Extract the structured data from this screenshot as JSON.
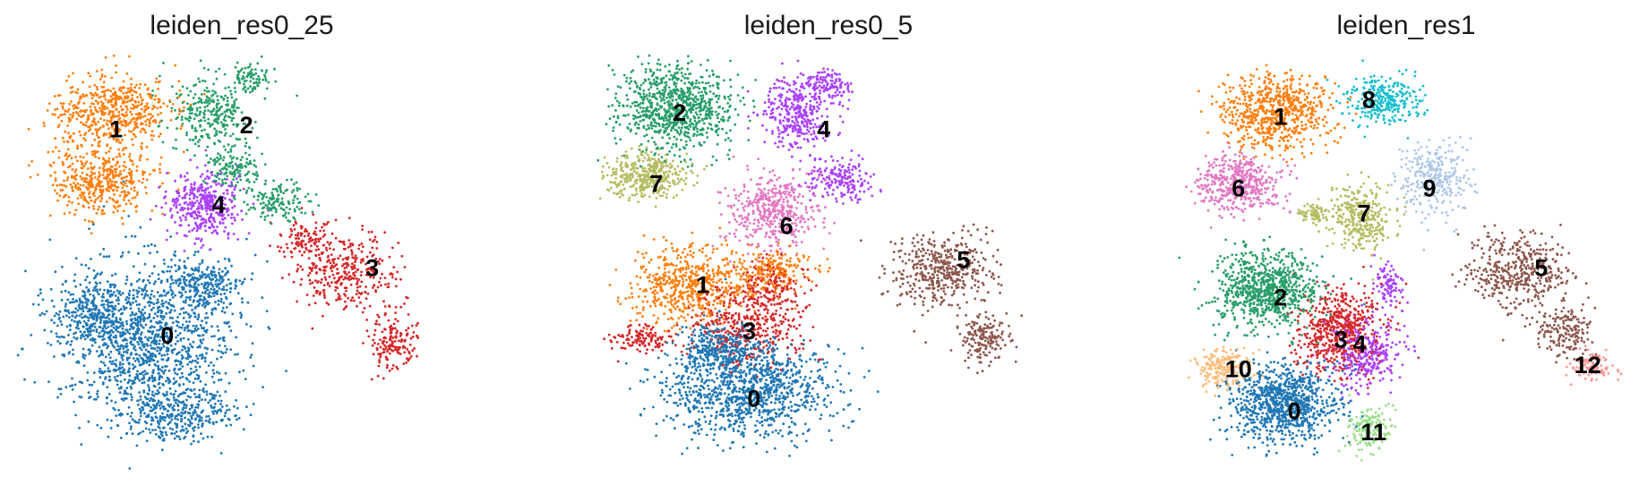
{
  "chart_data": [
    {
      "type": "scatter",
      "title": "leiden_res0_25",
      "clusters": [
        {
          "label": "0",
          "color": "#1f77b4",
          "n": 2100,
          "blobs": [
            [
              0.3,
              0.68,
              0.17,
              0.17,
              1.0
            ],
            [
              0.18,
              0.62,
              0.08,
              0.07,
              0.25
            ],
            [
              0.42,
              0.55,
              0.07,
              0.06,
              0.2
            ],
            [
              0.36,
              0.86,
              0.11,
              0.06,
              0.25
            ]
          ]
        },
        {
          "label": "1",
          "color": "#ff7f0e",
          "n": 1000,
          "blobs": [
            [
              0.22,
              0.14,
              0.11,
              0.08,
              1.0
            ],
            [
              0.2,
              0.3,
              0.1,
              0.07,
              0.8
            ]
          ]
        },
        {
          "label": "2",
          "color": "#279e68",
          "n": 650,
          "blobs": [
            [
              0.43,
              0.14,
              0.08,
              0.08,
              1.0
            ],
            [
              0.48,
              0.27,
              0.05,
              0.05,
              0.5
            ],
            [
              0.58,
              0.35,
              0.06,
              0.04,
              0.5
            ],
            [
              0.52,
              0.06,
              0.04,
              0.03,
              0.3
            ]
          ]
        },
        {
          "label": "3",
          "color": "#d62728",
          "n": 600,
          "blobs": [
            [
              0.72,
              0.52,
              0.1,
              0.08,
              1.0
            ],
            [
              0.82,
              0.68,
              0.05,
              0.06,
              0.5
            ],
            [
              0.64,
              0.44,
              0.06,
              0.04,
              0.3
            ]
          ]
        },
        {
          "label": "4",
          "color": "#aa40fc",
          "n": 380,
          "blobs": [
            [
              0.42,
              0.36,
              0.07,
              0.07,
              1.0
            ]
          ]
        }
      ],
      "labels": [
        {
          "text": "0",
          "x": 0.34,
          "y": 0.67
        },
        {
          "text": "1",
          "x": 0.23,
          "y": 0.18
        },
        {
          "text": "2",
          "x": 0.51,
          "y": 0.17
        },
        {
          "text": "3",
          "x": 0.78,
          "y": 0.51
        },
        {
          "text": "4",
          "x": 0.45,
          "y": 0.36
        }
      ]
    },
    {
      "type": "scatter",
      "title": "leiden_res0_5",
      "clusters": [
        {
          "label": "0",
          "color": "#1f77b4",
          "n": 1400,
          "blobs": [
            [
              0.33,
              0.8,
              0.16,
              0.1,
              1.0
            ],
            [
              0.27,
              0.7,
              0.08,
              0.06,
              0.3
            ]
          ]
        },
        {
          "label": "1",
          "color": "#ff7f0e",
          "n": 800,
          "blobs": [
            [
              0.2,
              0.55,
              0.11,
              0.08,
              1.0
            ],
            [
              0.38,
              0.52,
              0.08,
              0.05,
              0.4
            ]
          ]
        },
        {
          "label": "2",
          "color": "#279e68",
          "n": 850,
          "blobs": [
            [
              0.17,
              0.13,
              0.11,
              0.09,
              1.0
            ]
          ]
        },
        {
          "label": "3",
          "color": "#d62728",
          "n": 650,
          "blobs": [
            [
              0.33,
              0.64,
              0.11,
              0.08,
              1.0
            ],
            [
              0.1,
              0.68,
              0.07,
              0.03,
              0.3
            ],
            [
              0.38,
              0.55,
              0.05,
              0.05,
              0.3
            ]
          ]
        },
        {
          "label": "4",
          "color": "#aa40fc",
          "n": 650,
          "blobs": [
            [
              0.43,
              0.14,
              0.07,
              0.08,
              1.0
            ],
            [
              0.53,
              0.3,
              0.06,
              0.05,
              0.5
            ],
            [
              0.5,
              0.07,
              0.04,
              0.03,
              0.3
            ]
          ]
        },
        {
          "label": "5",
          "color": "#8c564b",
          "n": 600,
          "blobs": [
            [
              0.74,
              0.52,
              0.1,
              0.08,
              1.0
            ],
            [
              0.84,
              0.68,
              0.05,
              0.05,
              0.4
            ]
          ]
        },
        {
          "label": "6",
          "color": "#e377c2",
          "n": 450,
          "blobs": [
            [
              0.38,
              0.37,
              0.08,
              0.08,
              1.0
            ]
          ]
        },
        {
          "label": "7",
          "color": "#b5bd61",
          "n": 400,
          "blobs": [
            [
              0.11,
              0.29,
              0.08,
              0.05,
              1.0
            ]
          ]
        }
      ],
      "labels": [
        {
          "text": "0",
          "x": 0.34,
          "y": 0.82
        },
        {
          "text": "1",
          "x": 0.23,
          "y": 0.55
        },
        {
          "text": "2",
          "x": 0.18,
          "y": 0.14
        },
        {
          "text": "3",
          "x": 0.33,
          "y": 0.66
        },
        {
          "text": "4",
          "x": 0.49,
          "y": 0.18
        },
        {
          "text": "5",
          "x": 0.79,
          "y": 0.49
        },
        {
          "text": "6",
          "x": 0.41,
          "y": 0.41
        },
        {
          "text": "7",
          "x": 0.13,
          "y": 0.31
        }
      ]
    },
    {
      "type": "scatter",
      "title": "leiden_res1",
      "clusters": [
        {
          "label": "0",
          "color": "#1f77b4",
          "n": 900,
          "blobs": [
            [
              0.24,
              0.83,
              0.1,
              0.08,
              1.0
            ]
          ]
        },
        {
          "label": "1",
          "color": "#ff7f0e",
          "n": 700,
          "blobs": [
            [
              0.22,
              0.14,
              0.1,
              0.08,
              1.0
            ]
          ]
        },
        {
          "label": "2",
          "color": "#279e68",
          "n": 800,
          "blobs": [
            [
              0.2,
              0.56,
              0.1,
              0.08,
              1.0
            ]
          ]
        },
        {
          "label": "3",
          "color": "#d62728",
          "n": 550,
          "blobs": [
            [
              0.36,
              0.66,
              0.08,
              0.09,
              1.0
            ]
          ]
        },
        {
          "label": "4",
          "color": "#aa40fc",
          "n": 400,
          "blobs": [
            [
              0.41,
              0.71,
              0.07,
              0.07,
              1.0
            ],
            [
              0.46,
              0.55,
              0.03,
              0.05,
              0.3
            ]
          ]
        },
        {
          "label": "5",
          "color": "#8c564b",
          "n": 600,
          "blobs": [
            [
              0.74,
              0.52,
              0.1,
              0.08,
              1.0
            ],
            [
              0.84,
              0.66,
              0.05,
              0.05,
              0.4
            ]
          ]
        },
        {
          "label": "6",
          "color": "#e377c2",
          "n": 450,
          "blobs": [
            [
              0.14,
              0.31,
              0.08,
              0.06,
              1.0
            ]
          ]
        },
        {
          "label": "7",
          "color": "#b5bd61",
          "n": 400,
          "blobs": [
            [
              0.4,
              0.39,
              0.06,
              0.07,
              1.0
            ],
            [
              0.3,
              0.38,
              0.03,
              0.02,
              0.2
            ]
          ]
        },
        {
          "label": "8",
          "color": "#17becf",
          "n": 300,
          "blobs": [
            [
              0.45,
              0.11,
              0.07,
              0.05,
              1.0
            ]
          ]
        },
        {
          "label": "9",
          "color": "#aec7e8",
          "n": 300,
          "blobs": [
            [
              0.56,
              0.3,
              0.07,
              0.08,
              1.0
            ]
          ]
        },
        {
          "label": "10",
          "color": "#ffbb78",
          "n": 200,
          "blobs": [
            [
              0.11,
              0.75,
              0.05,
              0.04,
              1.0
            ]
          ]
        },
        {
          "label": "11",
          "color": "#98df8a",
          "n": 160,
          "blobs": [
            [
              0.42,
              0.89,
              0.04,
              0.05,
              1.0
            ]
          ]
        },
        {
          "label": "12",
          "color": "#ff9896",
          "n": 100,
          "blobs": [
            [
              0.9,
              0.74,
              0.04,
              0.03,
              1.0
            ]
          ]
        }
      ],
      "labels": [
        {
          "text": "0",
          "x": 0.26,
          "y": 0.85
        },
        {
          "text": "1",
          "x": 0.23,
          "y": 0.15
        },
        {
          "text": "2",
          "x": 0.23,
          "y": 0.58
        },
        {
          "text": "3",
          "x": 0.36,
          "y": 0.68
        },
        {
          "text": "4",
          "x": 0.4,
          "y": 0.69
        },
        {
          "text": "5",
          "x": 0.79,
          "y": 0.51
        },
        {
          "text": "6",
          "x": 0.14,
          "y": 0.32
        },
        {
          "text": "7",
          "x": 0.41,
          "y": 0.38
        },
        {
          "text": "8",
          "x": 0.42,
          "y": 0.11
        },
        {
          "text": "9",
          "x": 0.55,
          "y": 0.32
        },
        {
          "text": "10",
          "x": 0.14,
          "y": 0.75
        },
        {
          "text": "11",
          "x": 0.43,
          "y": 0.9
        },
        {
          "text": "12",
          "x": 0.89,
          "y": 0.74
        }
      ]
    }
  ]
}
